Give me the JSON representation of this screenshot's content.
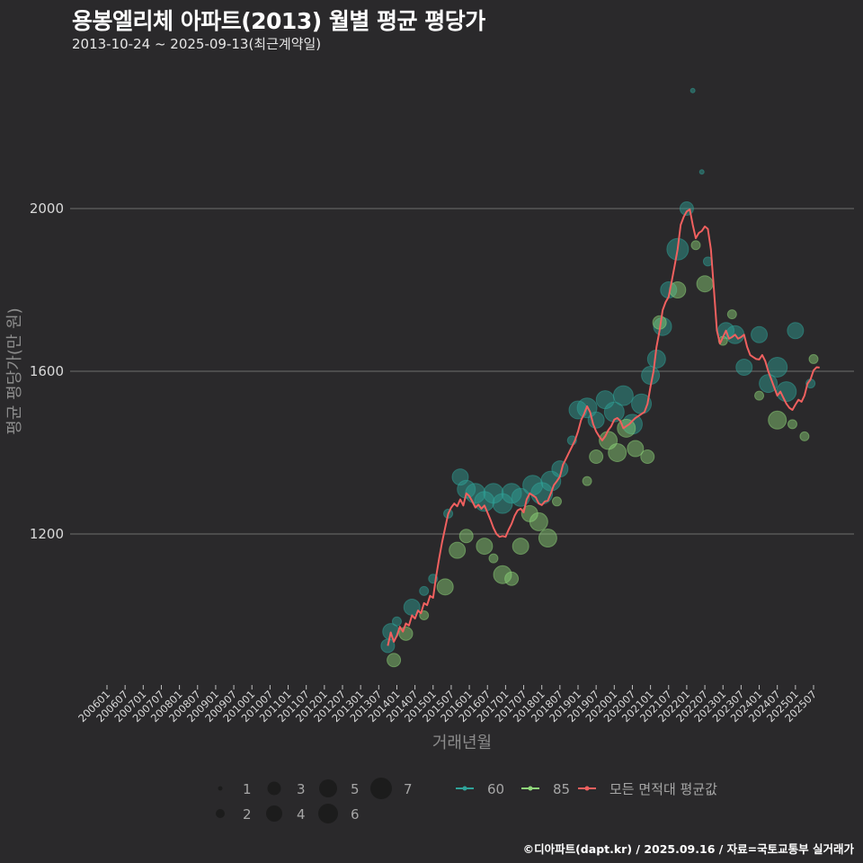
{
  "header": {
    "title": "용봉엘리체 아파트(2013) 월별 평균 평당가",
    "subtitle": "2013-10-24 ~ 2025-09-13(최근계약일)"
  },
  "footer": {
    "credit": "©디아파트(dapt.kr) / 2025.09.16 / 자료=국토교통부 실거래가"
  },
  "colors": {
    "background": "#2a292b",
    "grid": "#6e6e6e",
    "area60": "#2fa39a",
    "area85": "#8fd67a",
    "average": "#f0605f"
  },
  "legend": {
    "size_items": [
      {
        "label": "1",
        "r": 2.5
      },
      {
        "label": "2",
        "r": 5
      },
      {
        "label": "3",
        "r": 7.5
      },
      {
        "label": "4",
        "r": 9
      },
      {
        "label": "5",
        "r": 10
      },
      {
        "label": "6",
        "r": 11
      },
      {
        "label": "7",
        "r": 12
      }
    ],
    "line_items": [
      {
        "label": "60",
        "color": "#2fa39a"
      },
      {
        "label": "85",
        "color": "#8fd67a"
      },
      {
        "label": "모든 면적대 평균값",
        "color": "#f0605f"
      }
    ]
  },
  "chart_data": {
    "type": "line",
    "title": "용봉엘리체 아파트(2013) 월별 평균 평당가",
    "subtitle": "2013-10-24 ~ 2025-09-13(최근계약일)",
    "xlabel": "거래년월",
    "ylabel": "평균 평당가(만 원)",
    "x_ticks": [
      "200601",
      "200607",
      "200701",
      "200707",
      "200801",
      "200807",
      "200901",
      "200907",
      "201001",
      "201007",
      "201101",
      "201107",
      "201201",
      "201207",
      "201301",
      "201307",
      "201401",
      "201407",
      "201501",
      "201507",
      "201601",
      "201607",
      "201701",
      "201707",
      "201801",
      "201807",
      "201901",
      "201907",
      "202001",
      "202007",
      "202101",
      "202107",
      "202201",
      "202207",
      "202301",
      "202307",
      "202401",
      "202407",
      "202501",
      "202507"
    ],
    "y_ticks": [
      1200,
      1600,
      2000
    ],
    "ylim": [
      860,
      2290
    ],
    "grid": "horizontal",
    "legend_position": "bottom",
    "series": [
      {
        "name": "모든 면적대 평균값",
        "x": [
          "201310",
          "201311",
          "201312",
          "201401",
          "201402",
          "201403",
          "201404",
          "201405",
          "201406",
          "201407",
          "201408",
          "201409",
          "201410",
          "201411",
          "201412",
          "201501",
          "201502",
          "201503",
          "201504",
          "201505",
          "201506",
          "201507",
          "201508",
          "201509",
          "201510",
          "201511",
          "201512",
          "201601",
          "201602",
          "201603",
          "201604",
          "201605",
          "201606",
          "201607",
          "201608",
          "201609",
          "201610",
          "201611",
          "201612",
          "201701",
          "201702",
          "201703",
          "201704",
          "201705",
          "201706",
          "201707",
          "201708",
          "201709",
          "201710",
          "201711",
          "201712",
          "201801",
          "201802",
          "201803",
          "201804",
          "201805",
          "201806",
          "201807",
          "201808",
          "201809",
          "201810",
          "201811",
          "201812",
          "201901",
          "201902",
          "201903",
          "201904",
          "201905",
          "201906",
          "201907",
          "201908",
          "201909",
          "201910",
          "201911",
          "201912",
          "202001",
          "202002",
          "202003",
          "202004",
          "202005",
          "202006",
          "202007",
          "202008",
          "202009",
          "202010",
          "202011",
          "202012",
          "202101",
          "202102",
          "202103",
          "202104",
          "202105",
          "202106",
          "202107",
          "202108",
          "202109",
          "202110",
          "202111",
          "202112",
          "202201",
          "202202",
          "202203",
          "202204",
          "202205",
          "202206",
          "202207",
          "202208",
          "202209",
          "202210",
          "202211",
          "202212",
          "202301",
          "202302",
          "202303",
          "202304",
          "202305",
          "202306",
          "202307",
          "202308",
          "202309",
          "202310",
          "202311",
          "202312",
          "202401",
          "202402",
          "202403",
          "202404",
          "202405",
          "202406",
          "202407",
          "202408",
          "202409",
          "202410",
          "202411",
          "202412",
          "202501",
          "202502",
          "202503",
          "202504",
          "202505",
          "202506",
          "202507",
          "202508",
          "202509"
        ],
        "values": [
          925,
          958,
          935,
          950,
          972,
          960,
          980,
          975,
          1000,
          992,
          1012,
          1005,
          1030,
          1025,
          1048,
          1043,
          1095,
          1140,
          1180,
          1215,
          1250,
          1265,
          1275,
          1268,
          1285,
          1270,
          1300,
          1293,
          1280,
          1265,
          1272,
          1262,
          1270,
          1253,
          1235,
          1215,
          1200,
          1193,
          1195,
          1193,
          1210,
          1225,
          1245,
          1258,
          1262,
          1253,
          1285,
          1300,
          1295,
          1290,
          1275,
          1271,
          1280,
          1282,
          1300,
          1320,
          1330,
          1341,
          1370,
          1385,
          1400,
          1415,
          1430,
          1452,
          1480,
          1495,
          1514,
          1500,
          1470,
          1452,
          1440,
          1430,
          1440,
          1455,
          1465,
          1481,
          1485,
          1478,
          1460,
          1465,
          1470,
          1478,
          1485,
          1490,
          1495,
          1500,
          1520,
          1562,
          1600,
          1660,
          1700,
          1750,
          1770,
          1783,
          1820,
          1860,
          1900,
          1960,
          1980,
          1993,
          1998,
          1960,
          1927,
          1940,
          1945,
          1956,
          1950,
          1900,
          1800,
          1700,
          1668,
          1684,
          1700,
          1680,
          1684,
          1690,
          1680,
          1684,
          1690,
          1660,
          1640,
          1635,
          1630,
          1629,
          1640,
          1625,
          1600,
          1580,
          1560,
          1540,
          1550,
          1535,
          1520,
          1510,
          1505,
          1518,
          1530,
          1525,
          1540,
          1570,
          1580,
          1602,
          1610,
          1609
        ]
      }
    ],
    "bubbles": {
      "60": [
        {
          "x": "201310",
          "y": 925,
          "size": 3
        },
        {
          "x": "201311",
          "y": 960,
          "size": 4
        },
        {
          "x": "201401",
          "y": 985,
          "size": 2
        },
        {
          "x": "201406",
          "y": 1020,
          "size": 4
        },
        {
          "x": "201410",
          "y": 1060,
          "size": 2
        },
        {
          "x": "201501",
          "y": 1090,
          "size": 2
        },
        {
          "x": "201506",
          "y": 1250,
          "size": 2
        },
        {
          "x": "201510",
          "y": 1340,
          "size": 4
        },
        {
          "x": "201512",
          "y": 1310,
          "size": 5
        },
        {
          "x": "201603",
          "y": 1300,
          "size": 6
        },
        {
          "x": "201606",
          "y": 1280,
          "size": 6
        },
        {
          "x": "201609",
          "y": 1300,
          "size": 6
        },
        {
          "x": "201612",
          "y": 1275,
          "size": 6
        },
        {
          "x": "201703",
          "y": 1300,
          "size": 6
        },
        {
          "x": "201706",
          "y": 1290,
          "size": 5
        },
        {
          "x": "201710",
          "y": 1320,
          "size": 6
        },
        {
          "x": "201801",
          "y": 1300,
          "size": 7
        },
        {
          "x": "201804",
          "y": 1330,
          "size": 6
        },
        {
          "x": "201807",
          "y": 1360,
          "size": 4
        },
        {
          "x": "201811",
          "y": 1430,
          "size": 2
        },
        {
          "x": "201901",
          "y": 1505,
          "size": 5
        },
        {
          "x": "201904",
          "y": 1510,
          "size": 6
        },
        {
          "x": "201907",
          "y": 1480,
          "size": 4
        },
        {
          "x": "201910",
          "y": 1530,
          "size": 5
        },
        {
          "x": "202001",
          "y": 1500,
          "size": 6
        },
        {
          "x": "202004",
          "y": 1540,
          "size": 6
        },
        {
          "x": "202007",
          "y": 1470,
          "size": 6
        },
        {
          "x": "202010",
          "y": 1520,
          "size": 6
        },
        {
          "x": "202101",
          "y": 1590,
          "size": 5
        },
        {
          "x": "202103",
          "y": 1630,
          "size": 5
        },
        {
          "x": "202105",
          "y": 1710,
          "size": 5
        },
        {
          "x": "202107",
          "y": 1800,
          "size": 4
        },
        {
          "x": "202110",
          "y": 1900,
          "size": 7
        },
        {
          "x": "202201",
          "y": 2000,
          "size": 3
        },
        {
          "x": "202203",
          "y": 2290,
          "size": 1
        },
        {
          "x": "202206",
          "y": 2090,
          "size": 1
        },
        {
          "x": "202208",
          "y": 1870,
          "size": 2
        },
        {
          "x": "202302",
          "y": 1700,
          "size": 4
        },
        {
          "x": "202305",
          "y": 1690,
          "size": 5
        },
        {
          "x": "202308",
          "y": 1610,
          "size": 4
        },
        {
          "x": "202401",
          "y": 1690,
          "size": 4
        },
        {
          "x": "202404",
          "y": 1570,
          "size": 5
        },
        {
          "x": "202407",
          "y": 1610,
          "size": 6
        },
        {
          "x": "202410",
          "y": 1550,
          "size": 6
        },
        {
          "x": "202501",
          "y": 1700,
          "size": 4
        },
        {
          "x": "202506",
          "y": 1570,
          "size": 2
        }
      ],
      "85": [
        {
          "x": "201312",
          "y": 890,
          "size": 3
        },
        {
          "x": "201404",
          "y": 955,
          "size": 3
        },
        {
          "x": "201410",
          "y": 1000,
          "size": 2
        },
        {
          "x": "201505",
          "y": 1070,
          "size": 4
        },
        {
          "x": "201509",
          "y": 1160,
          "size": 4
        },
        {
          "x": "201512",
          "y": 1195,
          "size": 3
        },
        {
          "x": "201606",
          "y": 1170,
          "size": 4
        },
        {
          "x": "201609",
          "y": 1140,
          "size": 2
        },
        {
          "x": "201612",
          "y": 1100,
          "size": 5
        },
        {
          "x": "201703",
          "y": 1090,
          "size": 3
        },
        {
          "x": "201706",
          "y": 1170,
          "size": 4
        },
        {
          "x": "201709",
          "y": 1250,
          "size": 4
        },
        {
          "x": "201712",
          "y": 1230,
          "size": 5
        },
        {
          "x": "201803",
          "y": 1190,
          "size": 5
        },
        {
          "x": "201806",
          "y": 1280,
          "size": 2
        },
        {
          "x": "201904",
          "y": 1330,
          "size": 2
        },
        {
          "x": "201907",
          "y": 1390,
          "size": 3
        },
        {
          "x": "201911",
          "y": 1430,
          "size": 5
        },
        {
          "x": "202002",
          "y": 1400,
          "size": 5
        },
        {
          "x": "202005",
          "y": 1460,
          "size": 5
        },
        {
          "x": "202008",
          "y": 1410,
          "size": 4
        },
        {
          "x": "202012",
          "y": 1390,
          "size": 3
        },
        {
          "x": "202104",
          "y": 1720,
          "size": 3
        },
        {
          "x": "202110",
          "y": 1800,
          "size": 4
        },
        {
          "x": "202204",
          "y": 1910,
          "size": 2
        },
        {
          "x": "202207",
          "y": 1815,
          "size": 4
        },
        {
          "x": "202301",
          "y": 1675,
          "size": 2
        },
        {
          "x": "202304",
          "y": 1740,
          "size": 2
        },
        {
          "x": "202401",
          "y": 1540,
          "size": 2
        },
        {
          "x": "202407",
          "y": 1480,
          "size": 5
        },
        {
          "x": "202412",
          "y": 1470,
          "size": 2
        },
        {
          "x": "202504",
          "y": 1440,
          "size": 2
        },
        {
          "x": "202507",
          "y": 1630,
          "size": 2
        }
      ]
    }
  }
}
